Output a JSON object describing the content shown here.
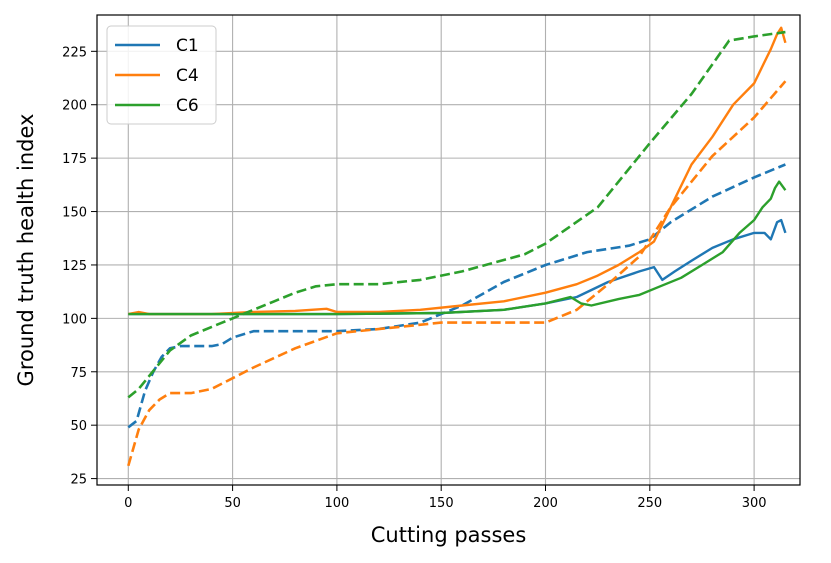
{
  "chart_data": {
    "type": "line",
    "title": "",
    "xlabel": "Cutting passes",
    "ylabel": "Ground truth health index",
    "xlim": [
      -15,
      322
    ],
    "ylim": [
      22,
      242
    ],
    "xticks": [
      0,
      50,
      100,
      150,
      200,
      250,
      300
    ],
    "yticks": [
      25,
      50,
      75,
      100,
      125,
      150,
      175,
      200,
      225
    ],
    "xtick_labels": [
      "0",
      "50",
      "100",
      "150",
      "200",
      "250",
      "300"
    ],
    "ytick_labels": [
      "25",
      "50",
      "75",
      "100",
      "125",
      "150",
      "175",
      "200",
      "225"
    ],
    "grid": true,
    "legend_position": "upper-left",
    "series": [
      {
        "name": "C1",
        "color": "#1f77b4",
        "solid": [
          [
            0,
            102
          ],
          [
            50,
            102
          ],
          [
            100,
            102
          ],
          [
            150,
            102.5
          ],
          [
            180,
            104
          ],
          [
            200,
            107
          ],
          [
            215,
            110
          ],
          [
            230,
            117
          ],
          [
            245,
            122
          ],
          [
            252,
            124
          ],
          [
            256,
            118
          ],
          [
            262,
            122
          ],
          [
            270,
            127
          ],
          [
            280,
            133
          ],
          [
            290,
            137
          ],
          [
            300,
            140
          ],
          [
            305,
            140
          ],
          [
            308,
            137
          ],
          [
            311,
            145
          ],
          [
            313,
            146
          ],
          [
            315,
            140
          ]
        ],
        "dashed": [
          [
            0,
            49
          ],
          [
            4,
            52
          ],
          [
            8,
            66
          ],
          [
            12,
            75
          ],
          [
            16,
            82
          ],
          [
            20,
            86
          ],
          [
            25,
            87
          ],
          [
            40,
            87
          ],
          [
            45,
            88
          ],
          [
            50,
            91
          ],
          [
            60,
            94
          ],
          [
            100,
            94
          ],
          [
            120,
            95
          ],
          [
            140,
            98
          ],
          [
            160,
            106
          ],
          [
            180,
            117
          ],
          [
            200,
            125
          ],
          [
            220,
            131
          ],
          [
            240,
            134
          ],
          [
            250,
            137
          ],
          [
            260,
            145
          ],
          [
            280,
            157
          ],
          [
            300,
            166
          ],
          [
            315,
            172
          ]
        ]
      },
      {
        "name": "C4",
        "color": "#ff7f0e",
        "solid": [
          [
            0,
            102
          ],
          [
            5,
            103
          ],
          [
            10,
            102
          ],
          [
            20,
            102
          ],
          [
            40,
            102
          ],
          [
            60,
            103
          ],
          [
            80,
            103.5
          ],
          [
            95,
            104.5
          ],
          [
            100,
            103
          ],
          [
            120,
            103
          ],
          [
            140,
            104
          ],
          [
            160,
            106
          ],
          [
            180,
            108
          ],
          [
            200,
            112
          ],
          [
            215,
            116
          ],
          [
            225,
            120
          ],
          [
            235,
            125
          ],
          [
            245,
            131
          ],
          [
            252,
            136
          ],
          [
            260,
            152
          ],
          [
            270,
            172
          ],
          [
            280,
            185
          ],
          [
            290,
            200
          ],
          [
            300,
            210
          ],
          [
            305,
            220
          ],
          [
            308,
            226
          ],
          [
            311,
            233
          ],
          [
            313,
            236
          ],
          [
            315,
            229
          ]
        ],
        "dashed": [
          [
            0,
            31
          ],
          [
            5,
            48
          ],
          [
            10,
            57
          ],
          [
            15,
            62
          ],
          [
            20,
            65
          ],
          [
            30,
            65
          ],
          [
            40,
            67
          ],
          [
            60,
            77
          ],
          [
            80,
            86
          ],
          [
            100,
            93
          ],
          [
            130,
            96
          ],
          [
            150,
            98
          ],
          [
            200,
            98
          ],
          [
            215,
            104
          ],
          [
            230,
            116
          ],
          [
            245,
            129
          ],
          [
            260,
            152
          ],
          [
            280,
            176
          ],
          [
            300,
            194
          ],
          [
            315,
            211
          ]
        ]
      },
      {
        "name": "C6",
        "color": "#2ca02c",
        "solid": [
          [
            0,
            102
          ],
          [
            50,
            102
          ],
          [
            100,
            102
          ],
          [
            150,
            102.5
          ],
          [
            180,
            104
          ],
          [
            200,
            107
          ],
          [
            212,
            110
          ],
          [
            217,
            107
          ],
          [
            222,
            106
          ],
          [
            235,
            109
          ],
          [
            245,
            111
          ],
          [
            255,
            115
          ],
          [
            265,
            119
          ],
          [
            275,
            125
          ],
          [
            285,
            131
          ],
          [
            293,
            140
          ],
          [
            300,
            146
          ],
          [
            304,
            152
          ],
          [
            308,
            156
          ],
          [
            310,
            161
          ],
          [
            312,
            164
          ],
          [
            315,
            160
          ]
        ],
        "dashed": [
          [
            0,
            63
          ],
          [
            5,
            67
          ],
          [
            10,
            73
          ],
          [
            20,
            85
          ],
          [
            30,
            92
          ],
          [
            40,
            96
          ],
          [
            50,
            100
          ],
          [
            60,
            104
          ],
          [
            70,
            108
          ],
          [
            80,
            112
          ],
          [
            90,
            115
          ],
          [
            100,
            116
          ],
          [
            120,
            116
          ],
          [
            140,
            118
          ],
          [
            160,
            122
          ],
          [
            190,
            130
          ],
          [
            200,
            135
          ],
          [
            225,
            152
          ],
          [
            250,
            182
          ],
          [
            270,
            205
          ],
          [
            288,
            230
          ],
          [
            300,
            232
          ],
          [
            315,
            234
          ]
        ]
      }
    ]
  }
}
